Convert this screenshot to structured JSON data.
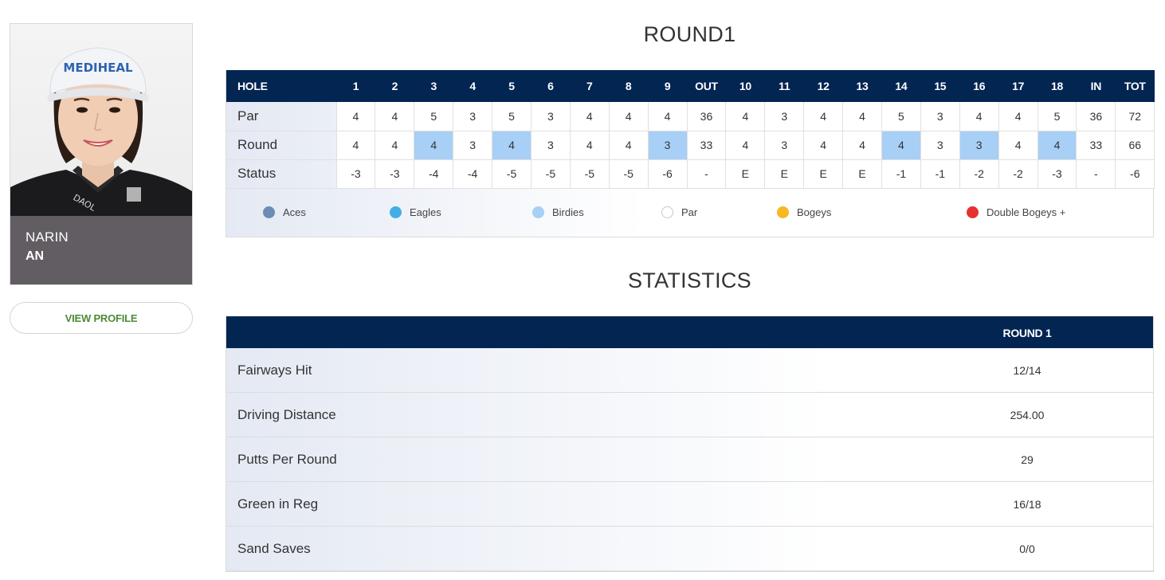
{
  "player": {
    "first_name": "NARIN",
    "last_name": "AN",
    "cap_logo": "MEDIHEAL",
    "shirt_logo": "DAOL",
    "view_profile_label": "VIEW PROFILE"
  },
  "round": {
    "title": "ROUND1",
    "hole_label": "HOLE",
    "columns": [
      "1",
      "2",
      "3",
      "4",
      "5",
      "6",
      "7",
      "8",
      "9",
      "OUT",
      "10",
      "11",
      "12",
      "13",
      "14",
      "15",
      "16",
      "17",
      "18",
      "IN",
      "TOT"
    ],
    "rows": [
      {
        "label": "Par",
        "values": [
          "4",
          "4",
          "5",
          "3",
          "5",
          "3",
          "4",
          "4",
          "4",
          "36",
          "4",
          "3",
          "4",
          "4",
          "5",
          "3",
          "4",
          "4",
          "5",
          "36",
          "72"
        ]
      },
      {
        "label": "Round",
        "values": [
          "4",
          "4",
          "4",
          "3",
          "4",
          "3",
          "4",
          "4",
          "3",
          "33",
          "4",
          "3",
          "4",
          "4",
          "4",
          "3",
          "3",
          "4",
          "4",
          "33",
          "66"
        ],
        "highlight": [
          2,
          4,
          8,
          14,
          16,
          18
        ]
      },
      {
        "label": "Status",
        "values": [
          "-3",
          "-3",
          "-4",
          "-4",
          "-5",
          "-5",
          "-5",
          "-5",
          "-6",
          "-",
          "E",
          "E",
          "E",
          "E",
          "-1",
          "-1",
          "-2",
          "-2",
          "-3",
          "-",
          "-6"
        ]
      }
    ]
  },
  "legend": [
    {
      "label": "Aces",
      "color": "#6b8db4"
    },
    {
      "label": "Eagles",
      "color": "#42aee6"
    },
    {
      "label": "Birdies",
      "color": "#a8cff6"
    },
    {
      "label": "Par",
      "color": "#ffffff"
    },
    {
      "label": "Bogeys",
      "color": "#f6b823"
    },
    {
      "label": "Double Bogeys +",
      "color": "#e5312f"
    }
  ],
  "statistics": {
    "title": "STATISTICS",
    "column_header": "ROUND 1",
    "rows": [
      {
        "label": "Fairways Hit",
        "value": "12/14"
      },
      {
        "label": "Driving Distance",
        "value": "254.00"
      },
      {
        "label": "Putts Per Round",
        "value": "29"
      },
      {
        "label": "Green in Reg",
        "value": "16/18"
      },
      {
        "label": "Sand Saves",
        "value": "0/0"
      }
    ]
  },
  "colors": {
    "header_navy": "#022552",
    "birdie_highlight": "#a8cff6",
    "name_panel": "#625d62",
    "profile_link": "#4c8a36"
  }
}
